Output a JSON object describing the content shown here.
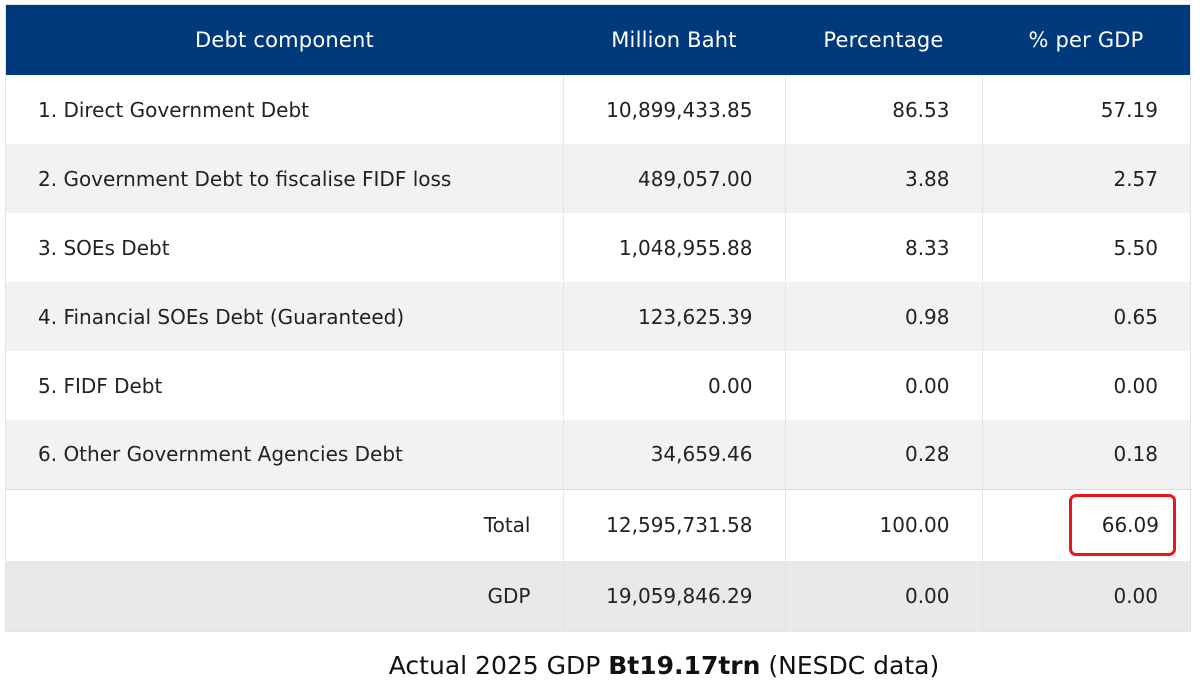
{
  "table": {
    "headers": [
      "Debt component",
      "Million Baht",
      "Percentage",
      "% per GDP"
    ],
    "rows": [
      {
        "component": "1. Direct Government Debt",
        "million_baht": "10,899,433.85",
        "percentage": "86.53",
        "per_gdp": "57.19"
      },
      {
        "component": "2. Government Debt to fiscalise FIDF loss",
        "million_baht": "489,057.00",
        "percentage": "3.88",
        "per_gdp": "2.57"
      },
      {
        "component": "3. SOEs Debt",
        "million_baht": "1,048,955.88",
        "percentage": "8.33",
        "per_gdp": "5.50"
      },
      {
        "component": "4. Financial SOEs Debt (Guaranteed)",
        "million_baht": "123,625.39",
        "percentage": "0.98",
        "per_gdp": "0.65"
      },
      {
        "component": "5. FIDF Debt",
        "million_baht": "0.00",
        "percentage": "0.00",
        "per_gdp": "0.00"
      },
      {
        "component": "6. Other Government Agencies Debt",
        "million_baht": "34,659.46",
        "percentage": "0.28",
        "per_gdp": "0.18"
      }
    ],
    "total": {
      "label": "Total",
      "million_baht": "12,595,731.58",
      "percentage": "100.00",
      "per_gdp": "66.09"
    },
    "gdp": {
      "label": "GDP",
      "million_baht": "19,059,846.29",
      "percentage": "0.00",
      "per_gdp": "0.00"
    }
  },
  "caption": {
    "prefix": "Actual 2025 GDP ",
    "bold": "Bt19.17trn",
    "suffix": " (NESDC data)"
  },
  "colors": {
    "header_bg": "#003a7d",
    "highlight": "#e5191b",
    "even_row": "#f2f2f2"
  }
}
